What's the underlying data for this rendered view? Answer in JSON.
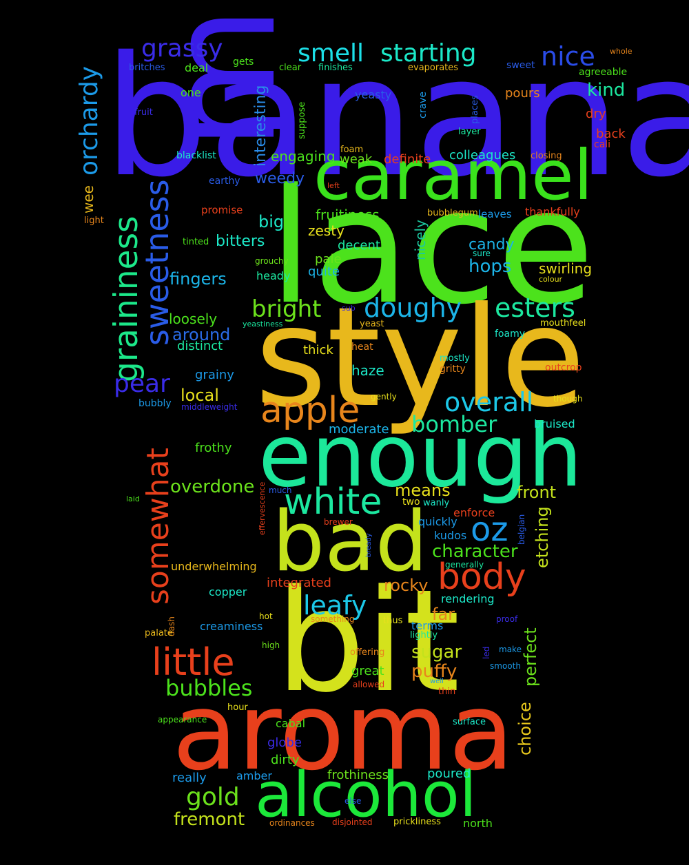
{
  "words": [
    {
      "text": "banana",
      "color": "#3a1ce8"
    },
    {
      "text": "lace",
      "color": "#4ce21c"
    },
    {
      "text": "medium",
      "color": "#3a1ce8"
    },
    {
      "text": "style",
      "color": "#e8b81c"
    },
    {
      "text": "bit",
      "color": "#d4e21c"
    },
    {
      "text": "enough",
      "color": "#1ce89a"
    },
    {
      "text": "aroma",
      "color": "#e8401c"
    },
    {
      "text": "bad",
      "color": "#c4e21c"
    },
    {
      "text": "caramel",
      "color": "#3ae21c"
    },
    {
      "text": "alcohol",
      "color": "#1ce83a"
    },
    {
      "text": "graininess",
      "color": "#1ce88a"
    },
    {
      "text": "sweetness",
      "color": "#2a5ce8"
    },
    {
      "text": "white",
      "color": "#1ce8a0"
    },
    {
      "text": "apple",
      "color": "#e8861c"
    },
    {
      "text": "little",
      "color": "#e8401c"
    },
    {
      "text": "body",
      "color": "#e8401c"
    },
    {
      "text": "somewhat",
      "color": "#e8401c"
    },
    {
      "text": "overall",
      "color": "#1cc8e8"
    },
    {
      "text": "doughy",
      "color": "#1cb4e8"
    },
    {
      "text": "esters",
      "color": "#1ce8a0"
    },
    {
      "text": "oz",
      "color": "#1c9ae8"
    },
    {
      "text": "orchardy",
      "color": "#1c9ae8"
    },
    {
      "text": "smell",
      "color": "#1ce0e8"
    },
    {
      "text": "starting",
      "color": "#1ce8c8"
    },
    {
      "text": "nice",
      "color": "#2a4ce8"
    },
    {
      "text": "grassy",
      "color": "#3a2ce8"
    },
    {
      "text": "leafy",
      "color": "#1cc8e8"
    },
    {
      "text": "pear",
      "color": "#3a2ce8"
    },
    {
      "text": "bright",
      "color": "#6ce21c"
    },
    {
      "text": "bomber",
      "color": "#1ce8a0"
    },
    {
      "text": "bubbles",
      "color": "#4ce21c"
    },
    {
      "text": "gold",
      "color": "#6ce21c"
    },
    {
      "text": "character",
      "color": "#4ce21c"
    },
    {
      "text": "overdone",
      "color": "#6ce21c"
    },
    {
      "text": "etching",
      "color": "#c4e21c"
    },
    {
      "text": "perfect",
      "color": "#6ce21c"
    },
    {
      "text": "choice",
      "color": "#e8c81c"
    },
    {
      "text": "sugar",
      "color": "#c4e21c"
    },
    {
      "text": "puffy",
      "color": "#e8861c"
    },
    {
      "text": "fremont",
      "color": "#c4e21c"
    },
    {
      "text": "front",
      "color": "#c4e21c"
    },
    {
      "text": "means",
      "color": "#e8e01c"
    },
    {
      "text": "interesting",
      "color": "#2a8ce8"
    },
    {
      "text": "kind",
      "color": "#1ce8a0"
    },
    {
      "text": "hops",
      "color": "#1cb4e8"
    },
    {
      "text": "fingers",
      "color": "#1cb4e8"
    },
    {
      "text": "local",
      "color": "#e8e01c"
    },
    {
      "text": "around",
      "color": "#2a6ce8"
    },
    {
      "text": "rocky",
      "color": "#e8861c"
    },
    {
      "text": "far",
      "color": "#e8861c"
    },
    {
      "text": "nicely",
      "color": "#1cc8a0"
    },
    {
      "text": "candy",
      "color": "#1cb4e8"
    },
    {
      "text": "swirling",
      "color": "#e8e01c"
    },
    {
      "text": "big",
      "color": "#1ce8c8"
    },
    {
      "text": "bitters",
      "color": "#1ce8c8"
    },
    {
      "text": "loosely",
      "color": "#4ce21c"
    },
    {
      "text": "distinct",
      "color": "#1ce8a0"
    },
    {
      "text": "haze",
      "color": "#1ce8c8"
    },
    {
      "text": "weedy",
      "color": "#2a5ce8"
    },
    {
      "text": "engaging",
      "color": "#4ce21c"
    },
    {
      "text": "fruitiness",
      "color": "#4ce21c"
    },
    {
      "text": "zesty",
      "color": "#e8e01c"
    },
    {
      "text": "decent",
      "color": "#1ce8a0"
    },
    {
      "text": "pale",
      "color": "#6ce21c"
    },
    {
      "text": "quite",
      "color": "#1cb4e8"
    },
    {
      "text": "weak",
      "color": "#6ce21c"
    },
    {
      "text": "definite",
      "color": "#e8401c"
    },
    {
      "text": "colleagues",
      "color": "#1ce8c8"
    },
    {
      "text": "wee",
      "color": "#e8b81c"
    },
    {
      "text": "grainy",
      "color": "#1c9ae8"
    },
    {
      "text": "frothy",
      "color": "#4ce21c"
    },
    {
      "text": "moderate",
      "color": "#1cb4e8"
    },
    {
      "text": "bruised",
      "color": "#1ce8c8"
    },
    {
      "text": "thick",
      "color": "#e8e01c"
    },
    {
      "text": "heady",
      "color": "#1ce8a0"
    },
    {
      "text": "integrated",
      "color": "#e8401c"
    },
    {
      "text": "underwhelming",
      "color": "#e8b81c"
    },
    {
      "text": "copper",
      "color": "#1ce8c8"
    },
    {
      "text": "creaminess",
      "color": "#1c9ae8"
    },
    {
      "text": "great",
      "color": "#4ce21c"
    },
    {
      "text": "frothiness",
      "color": "#6ce21c"
    },
    {
      "text": "really",
      "color": "#1c9ae8"
    },
    {
      "text": "dirty",
      "color": "#4ce21c"
    },
    {
      "text": "globe",
      "color": "#3a2ce8"
    },
    {
      "text": "cabal",
      "color": "#4ce21c"
    },
    {
      "text": "poured",
      "color": "#1ce8c8"
    },
    {
      "text": "amber",
      "color": "#1c9ae8"
    },
    {
      "text": "north",
      "color": "#4ce21c"
    },
    {
      "text": "enforce",
      "color": "#e8401c"
    },
    {
      "text": "quickly",
      "color": "#1c9ae8"
    },
    {
      "text": "kudos",
      "color": "#1c9ae8"
    },
    {
      "text": "rendering",
      "color": "#1ce8c8"
    },
    {
      "text": "terms",
      "color": "#1c9ae8"
    },
    {
      "text": "pours",
      "color": "#e8861c"
    },
    {
      "text": "dry",
      "color": "#e8401c"
    },
    {
      "text": "back",
      "color": "#e8401c"
    },
    {
      "text": "cali",
      "color": "#e8401c"
    },
    {
      "text": "sweet",
      "color": "#2a5ce8"
    },
    {
      "text": "agreeable",
      "color": "#4ce21c"
    },
    {
      "text": "deal",
      "color": "#4ce21c"
    },
    {
      "text": "gets",
      "color": "#4ce21c"
    },
    {
      "text": "clear",
      "color": "#4ce21c"
    },
    {
      "text": "finishes",
      "color": "#1ce8a0"
    },
    {
      "text": "evaporates",
      "color": "#e8b81c"
    },
    {
      "text": "whole",
      "color": "#e8861c"
    },
    {
      "text": "britches",
      "color": "#2a5ce8"
    },
    {
      "text": "one",
      "color": "#4ce21c"
    },
    {
      "text": "yeasty",
      "color": "#2a5ce8"
    },
    {
      "text": "fruit",
      "color": "#3a2ce8"
    },
    {
      "text": "suppose",
      "color": "#4ce21c"
    },
    {
      "text": "crave",
      "color": "#1c9ae8"
    },
    {
      "text": "places",
      "color": "#2a5ce8"
    },
    {
      "text": "layer",
      "color": "#1ce8a0"
    },
    {
      "text": "foam",
      "color": "#e8b81c"
    },
    {
      "text": "closing",
      "color": "#e8861c"
    },
    {
      "text": "blacklist",
      "color": "#1ce8c8"
    },
    {
      "text": "earthy",
      "color": "#2a5ce8"
    },
    {
      "text": "left",
      "color": "#e8401c"
    },
    {
      "text": "promise",
      "color": "#e8401c"
    },
    {
      "text": "light",
      "color": "#e8861c"
    },
    {
      "text": "tinted",
      "color": "#4ce21c"
    },
    {
      "text": "bubblegum",
      "color": "#e8b81c"
    },
    {
      "text": "leaves",
      "color": "#1c9ae8"
    },
    {
      "text": "thankfully",
      "color": "#e8401c"
    },
    {
      "text": "grouchy",
      "color": "#6ce21c"
    },
    {
      "text": "sure",
      "color": "#1ce8c8"
    },
    {
      "text": "colour",
      "color": "#e8e01c"
    },
    {
      "text": "sub",
      "color": "#3a2ce8"
    },
    {
      "text": "yeastiness",
      "color": "#1ce8a0"
    },
    {
      "text": "yeast",
      "color": "#e8b81c"
    },
    {
      "text": "mouthfeel",
      "color": "#e8e01c"
    },
    {
      "text": "foamy",
      "color": "#1ce8c8"
    },
    {
      "text": "heat",
      "color": "#e8861c"
    },
    {
      "text": "mostly",
      "color": "#1ce8c8"
    },
    {
      "text": "gritty",
      "color": "#e8861c"
    },
    {
      "text": "outcrop",
      "color": "#e8401c"
    },
    {
      "text": "gently",
      "color": "#e8e01c"
    },
    {
      "text": "though",
      "color": "#e8e01c"
    },
    {
      "text": "bubbly",
      "color": "#1c9ae8"
    },
    {
      "text": "middleweight",
      "color": "#3a2ce8"
    },
    {
      "text": "much",
      "color": "#2a5ce8"
    },
    {
      "text": "laid",
      "color": "#4ce21c"
    },
    {
      "text": "effervescence",
      "color": "#e8401c"
    },
    {
      "text": "two",
      "color": "#e8e01c"
    },
    {
      "text": "wanly",
      "color": "#1ce8c8"
    },
    {
      "text": "belgian",
      "color": "#2a5ce8"
    },
    {
      "text": "brewer",
      "color": "#e8401c"
    },
    {
      "text": "bready",
      "color": "#2a5ce8"
    },
    {
      "text": "generally",
      "color": "#1ce8a0"
    },
    {
      "text": "dash",
      "color": "#e8861c"
    },
    {
      "text": "hot",
      "color": "#e8e01c"
    },
    {
      "text": "something",
      "color": "#e8861c"
    },
    {
      "text": "thus",
      "color": "#e8e01c"
    },
    {
      "text": "proof",
      "color": "#3a2ce8"
    },
    {
      "text": "palate",
      "color": "#e8b81c"
    },
    {
      "text": "lightly",
      "color": "#1ce8a0"
    },
    {
      "text": "high",
      "color": "#6ce21c"
    },
    {
      "text": "offering",
      "color": "#e8861c"
    },
    {
      "text": "led",
      "color": "#3a2ce8"
    },
    {
      "text": "make",
      "color": "#1c9ae8"
    },
    {
      "text": "smooth",
      "color": "#1c9ae8"
    },
    {
      "text": "allowed",
      "color": "#e8401c"
    },
    {
      "text": "well",
      "color": "#1c9ae8"
    },
    {
      "text": "thin",
      "color": "#e8401c"
    },
    {
      "text": "hour",
      "color": "#e8e01c"
    },
    {
      "text": "appearance",
      "color": "#4ce21c"
    },
    {
      "text": "surface",
      "color": "#1ce8c8"
    },
    {
      "text": "else",
      "color": "#2a5ce8"
    },
    {
      "text": "ordinances",
      "color": "#e8861c"
    },
    {
      "text": "disjointed",
      "color": "#e8401c"
    },
    {
      "text": "prickliness",
      "color": "#e8e01c"
    }
  ]
}
